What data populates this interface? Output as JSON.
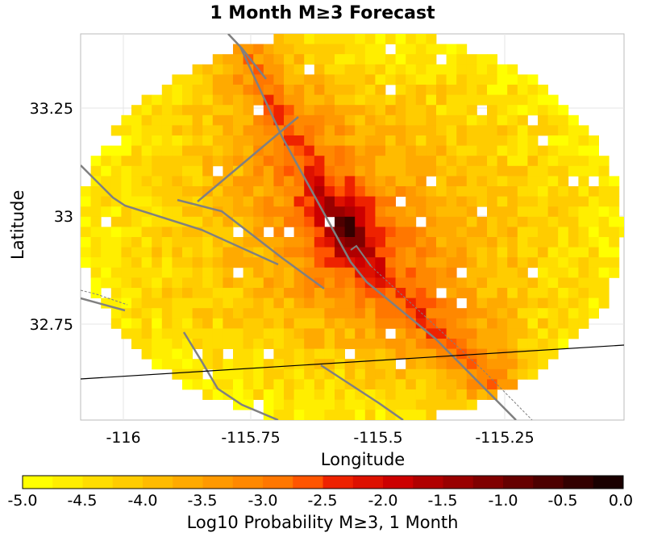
{
  "title": "1 Month M≥3 Forecast",
  "xlabel": "Longitude",
  "ylabel": "Latitude",
  "colorbar_label": "Log10 Probability M≥3, 1 Month",
  "x_ticks": [
    "-116",
    "-115.75",
    "-115.5",
    "-115.25"
  ],
  "y_ticks": [
    "33.25",
    "33",
    "32.75"
  ],
  "colorbar_ticks": [
    "-5.0",
    "-4.5",
    "-4.0",
    "-3.5",
    "-3.0",
    "-2.5",
    "-2.0",
    "-1.5",
    "-1.0",
    "-0.5",
    "0.0"
  ],
  "colorbar_colors": [
    "#ffff00",
    "#ffee00",
    "#ffdd00",
    "#ffcc00",
    "#ffbb00",
    "#ffaa00",
    "#ff9900",
    "#ff8800",
    "#ff7700",
    "#ff5500",
    "#ee2200",
    "#dd1100",
    "#cc0000",
    "#b00000",
    "#990000",
    "#800000",
    "#660000",
    "#4d0000",
    "#330000",
    "#1a0000"
  ],
  "chart_data": {
    "type": "heatmap",
    "title": "1 Month M≥3 Forecast",
    "xlabel": "Longitude",
    "ylabel": "Latitude",
    "xlim": [
      -116.1,
      -115.03
    ],
    "ylim": [
      32.53,
      33.43
    ],
    "value_range": [
      -5.0,
      0.0
    ],
    "grid": true,
    "peak": {
      "lon": -115.54,
      "lat": 32.97,
      "value": -0.1
    },
    "colorbar_label": "Log10 Probability M≥3, 1 Month"
  }
}
